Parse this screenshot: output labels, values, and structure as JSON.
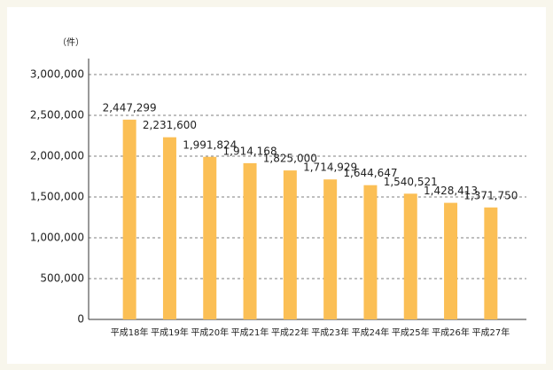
{
  "chart_data": {
    "type": "bar",
    "y_label": "（件）",
    "categories": [
      "平成18年",
      "平成19年",
      "平成20年",
      "平成21年",
      "平成22年",
      "平成23年",
      "平成24年",
      "平成25年",
      "平成26年",
      "平成27年"
    ],
    "values": [
      2447299,
      2231600,
      1991824,
      1914168,
      1825000,
      1714929,
      1644647,
      1540521,
      1428413,
      1371750
    ],
    "value_labels": [
      "2,447,299",
      "2,231,600",
      "1,991,824",
      "1,914,168",
      "1,825,000",
      "1,714,929",
      "1,644,647",
      "1,540,521",
      "1,428,413",
      "1,371,750"
    ],
    "color": "#fbbf55",
    "ylim": [
      0,
      3000000
    ],
    "yticks": [
      0,
      {
        "value": 500000,
        "label": "500,000"
      },
      {
        "value": 1000000,
        "label": "1,000,000"
      },
      {
        "value": 1500000,
        "label": "1,500,000"
      },
      {
        "value": 2000000,
        "label": "2,000,000"
      },
      {
        "value": 2500000,
        "label": "2,500,000"
      },
      {
        "value": 3000000,
        "label": "3,000,000"
      }
    ],
    "grid": true
  }
}
